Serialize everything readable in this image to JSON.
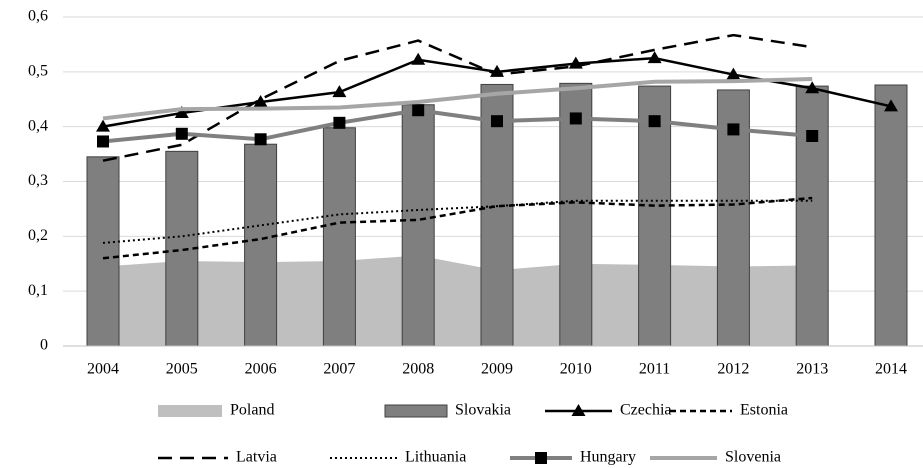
{
  "chart_data": {
    "type": "combo",
    "categories": [
      "2004",
      "2005",
      "2006",
      "2007",
      "2008",
      "2009",
      "2010",
      "2011",
      "2012",
      "2013",
      "2014"
    ],
    "ylim": [
      0,
      0.6
    ],
    "yticks": [
      0,
      {
        "value": 0.1,
        "label": "0,1"
      },
      {
        "value": 0.2,
        "label": "0,2"
      },
      {
        "value": 0.3,
        "label": "0,3"
      },
      {
        "value": 0.4,
        "label": "0,4"
      },
      {
        "value": 0.5,
        "label": "0,5"
      },
      {
        "value": 0.6,
        "label": "0,6"
      }
    ],
    "grid": true,
    "legend": "bottom",
    "series": [
      {
        "name": "Poland",
        "type": "area",
        "color": "#bfbfbf",
        "values": [
          0.145,
          0.155,
          0.153,
          0.155,
          0.165,
          0.138,
          0.15,
          0.148,
          0.145,
          0.147,
          null
        ]
      },
      {
        "name": "Slovakia",
        "type": "bar",
        "color": "#7f7f7f",
        "values": [
          0.345,
          0.355,
          0.368,
          0.398,
          0.44,
          0.477,
          0.479,
          0.474,
          0.467,
          0.474,
          0.476
        ]
      },
      {
        "name": "Czechia",
        "type": "line",
        "color": "#000000",
        "dash": "solid",
        "marker": "triangle",
        "values": [
          0.4,
          0.425,
          0.445,
          0.463,
          0.522,
          0.5,
          0.515,
          0.525,
          0.495,
          0.47,
          0.437
        ]
      },
      {
        "name": "Estonia",
        "type": "line",
        "color": "#000000",
        "dash": "short",
        "values": [
          0.16,
          0.175,
          0.195,
          0.225,
          0.23,
          0.255,
          0.262,
          0.256,
          0.258,
          0.27,
          null
        ]
      },
      {
        "name": "Latvia",
        "type": "line",
        "color": "#000000",
        "dash": "long",
        "values": [
          0.338,
          0.367,
          0.45,
          0.52,
          0.557,
          0.495,
          0.51,
          0.54,
          0.567,
          0.545,
          null
        ]
      },
      {
        "name": "Lithuania",
        "type": "line",
        "color": "#000000",
        "dash": "dot",
        "values": [
          0.188,
          0.2,
          0.22,
          0.24,
          0.248,
          0.255,
          0.265,
          0.265,
          0.265,
          0.265,
          null
        ]
      },
      {
        "name": "Hungary",
        "type": "line",
        "color": "#808080",
        "dash": "solid",
        "marker": "square",
        "values": [
          0.373,
          0.387,
          0.377,
          0.407,
          0.43,
          0.41,
          0.415,
          0.41,
          0.395,
          0.383,
          null
        ]
      },
      {
        "name": "Slovenia",
        "type": "line",
        "color": "#a6a6a6",
        "dash": "solid",
        "values": [
          0.415,
          0.432,
          0.433,
          0.435,
          0.445,
          0.46,
          0.47,
          0.482,
          0.483,
          0.487,
          null
        ]
      }
    ]
  }
}
